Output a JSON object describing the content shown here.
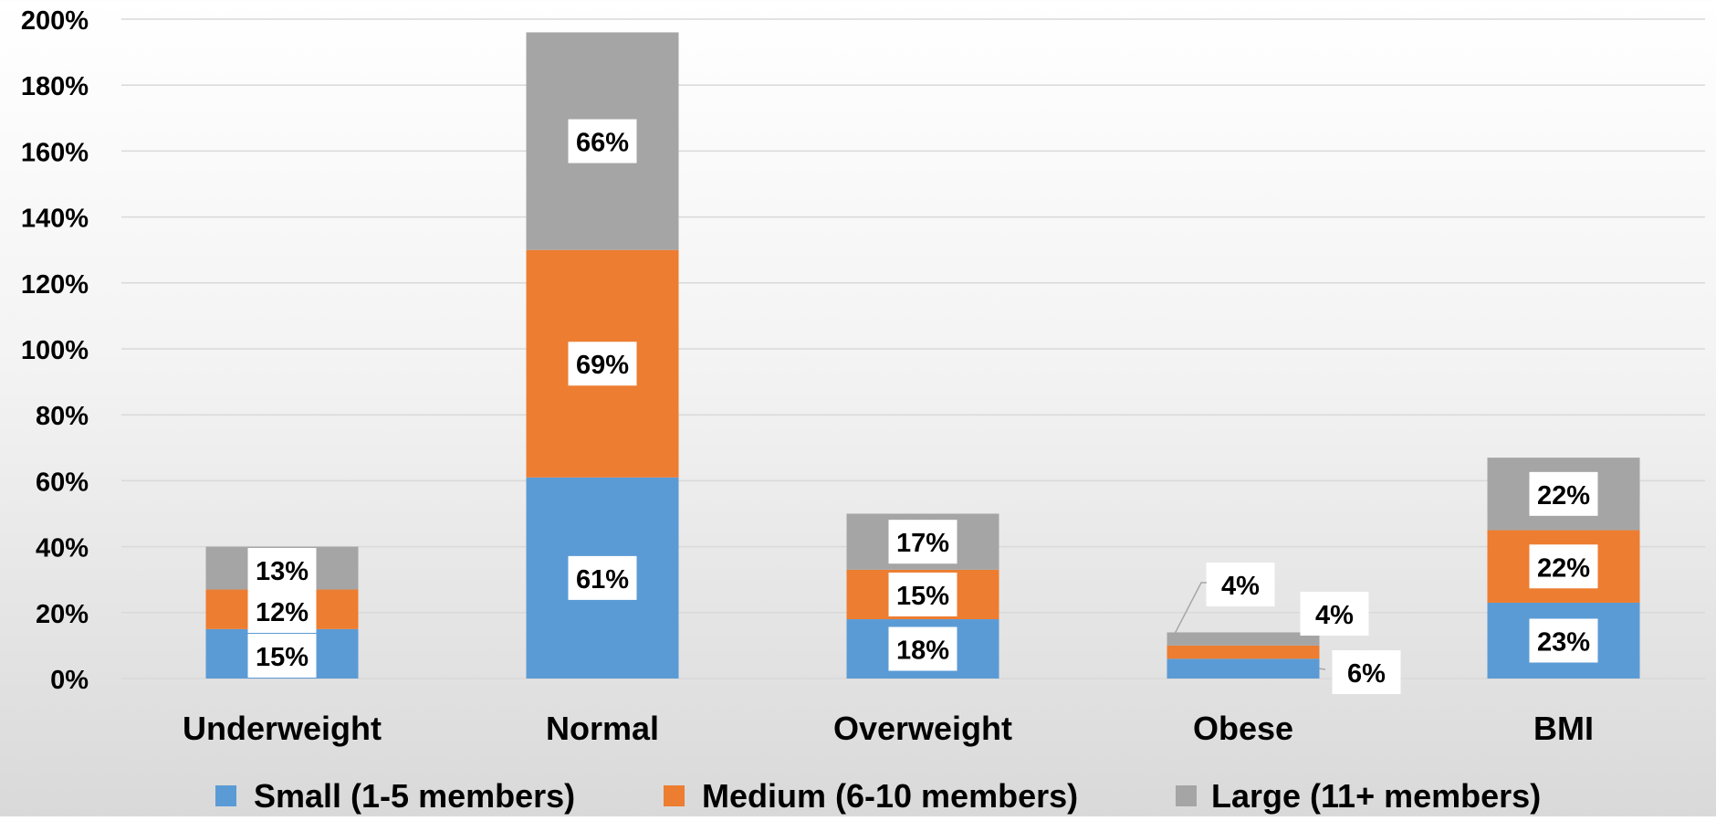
{
  "chart_data": {
    "type": "bar",
    "stacked": true,
    "categories": [
      "Underweight",
      "Normal",
      "Overweight",
      "Obese",
      "BMI"
    ],
    "series": [
      {
        "name": "Small (1-5 members)",
        "color": "#5b9bd5",
        "values": [
          15,
          61,
          18,
          6,
          23
        ],
        "labels": [
          "15%",
          "61%",
          "18%",
          "6%",
          "23%"
        ]
      },
      {
        "name": "Medium (6-10 members)",
        "color": "#ed7d31",
        "values": [
          12,
          69,
          15,
          4,
          22
        ],
        "labels": [
          "12%",
          "69%",
          "15%",
          "4%",
          "22%"
        ]
      },
      {
        "name": "Large (11+ members)",
        "color": "#a5a5a5",
        "values": [
          13,
          66,
          17,
          4,
          22
        ],
        "labels": [
          "13%",
          "66%",
          "17%",
          "4%",
          "22%"
        ]
      }
    ],
    "ylim": [
      0,
      200
    ],
    "yticks": [
      0,
      20,
      40,
      60,
      80,
      100,
      120,
      140,
      160,
      180,
      200
    ],
    "ytick_labels": [
      "0%",
      "20%",
      "40%",
      "60%",
      "80%",
      "100%",
      "120%",
      "140%",
      "160%",
      "180%",
      "200%"
    ],
    "title": "",
    "xlabel": "",
    "ylabel": "",
    "grid": true,
    "legend_position": "bottom",
    "data_labels": true
  }
}
